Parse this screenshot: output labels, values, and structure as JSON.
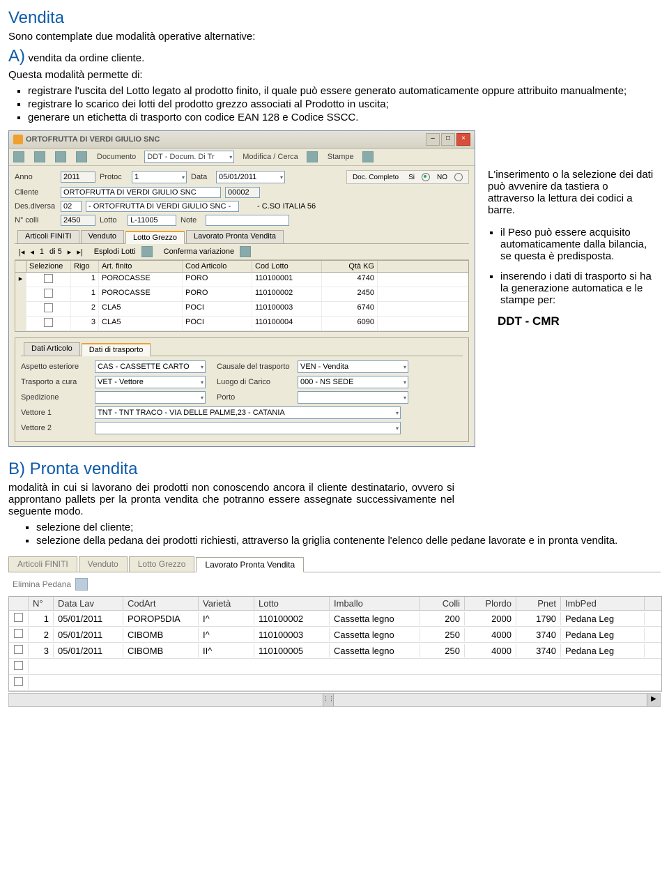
{
  "title": "Vendita",
  "intro": "Sono contemplate due modalità operative alternative:",
  "modeA": {
    "label": "A)",
    "desc": "vendita da ordine cliente.",
    "lead": "Questa modalità permette di:",
    "bullets": [
      "registrare l'uscita del Lotto legato al prodotto finito, il quale può essere generato automaticamente oppure attribuito manualmente;",
      "registrare lo scarico dei lotti del prodotto grezzo associati al Prodotto in uscita;",
      "generare un etichetta di trasporto con codice EAN 128 e Codice SSCC."
    ]
  },
  "sidebar": {
    "p1": "L'inserimento o la selezione dei dati può avvenire da tastiera o attraverso la lettura dei codici a barre.",
    "b1": "il Peso può essere acquisito automaticamente dalla bilancia, se questa è predisposta.",
    "b2": "inserendo i dati di trasporto si ha la generazione automatica e le stampe per:",
    "dd": "DDT  -   CMR"
  },
  "modeB": {
    "label": "B) Pronta vendita",
    "body": "modalità in cui si lavorano dei prodotti non conoscendo ancora il cliente destinatario, ovvero si approntano pallets per la pronta vendita che potranno essere assegnate successivamente nel seguente modo.",
    "bullets": [
      "selezione del cliente;",
      "selezione della pedana dei prodotti richiesti, attraverso la griglia contenente l'elenco delle pedane lavorate e in pronta vendita."
    ]
  },
  "win1": {
    "title": "ORTOFRUTTA DI VERDI GIULIO SNC",
    "toolbar": {
      "docs": "Documento",
      "doc_sel": "DDT - Docum. Di Tr",
      "modifica": "Modifica / Cerca",
      "stampe": "Stampe"
    },
    "form": {
      "anno_lbl": "Anno",
      "anno_val": "2011",
      "protoc_lbl": "Protoc",
      "protoc_val": "1",
      "data_lbl": "Data",
      "data_val": "05/01/2011",
      "cliente_lbl": "Cliente",
      "cliente_val": "ORTOFRUTTA DI VERDI GIULIO SNC",
      "cliente_code": "00002",
      "des_lbl": "Des.diversa",
      "des_code": "02",
      "des_val": "- ORTOFRUTTA DI VERDI GIULIO SNC -",
      "des_addr": "- C.SO ITALIA 56",
      "colli_lbl": "N° colli",
      "colli_val": "2450",
      "lotto_lbl": "Lotto",
      "lotto_val": "L-11005",
      "note_lbl": "Note",
      "doc_completo_lbl": "Doc. Completo",
      "si": "Si",
      "no": "NO"
    },
    "tabs1": [
      "Articoli FINITI",
      "Venduto",
      "Lotto Grezzo",
      "Lavorato Pronta Vendita"
    ],
    "tabs1_active": 2,
    "tb2": {
      "nav": "di 5",
      "esplodi": "Esplodi Lotti",
      "conferma": "Conferma variazione"
    },
    "grid1": {
      "cols": [
        "Selezione",
        "Rigo",
        "Art. finito",
        "Cod Articolo",
        "Cod Lotto",
        "Qtà KG"
      ],
      "widths": [
        64,
        40,
        120,
        100,
        100,
        80
      ],
      "rows": [
        {
          "rigo": "1",
          "art": "POROCASSE",
          "codart": "PORO",
          "codlot": "110100001",
          "qta": "4740"
        },
        {
          "rigo": "1",
          "art": "POROCASSE",
          "codart": "PORO",
          "codlot": "110100002",
          "qta": "2450"
        },
        {
          "rigo": "2",
          "art": "CLA5",
          "codart": "POCI",
          "codlot": "110100003",
          "qta": "6740"
        },
        {
          "rigo": "3",
          "art": "CLA5",
          "codart": "POCI",
          "codlot": "110100004",
          "qta": "6090"
        }
      ]
    },
    "tabs2": [
      "Dati Articolo",
      "Dati di trasporto"
    ],
    "tabs2_active": 1,
    "transport": {
      "aspetto_lbl": "Aspetto esteriore",
      "aspetto_val": "CAS - CASSETTE CARTO",
      "causale_lbl": "Causale del trasporto",
      "causale_val": "VEN - Vendita",
      "trasporto_lbl": "Trasporto a cura",
      "trasporto_val": "VET - Vettore",
      "luogo_lbl": "Luogo di Carico",
      "luogo_val": "000 - NS SEDE",
      "sped_lbl": "Spedizione",
      "porto_lbl": "Porto",
      "vet1_lbl": "Vettore 1",
      "vet1_val": "TNT - TNT TRACO - VIA DELLE PALME,23 - CATANIA",
      "vet2_lbl": "Vettore 2"
    }
  },
  "ss2": {
    "tabs": [
      "Articoli FINITI",
      "Venduto",
      "Lotto Grezzo",
      "Lavorato Pronta Vendita"
    ],
    "active": 3,
    "elimina": "Elimina Pedana",
    "cols": [
      "",
      "N°",
      "Data Lav",
      "CodArt",
      "Varietà",
      "Lotto",
      "Imballo",
      "Colli",
      "Plordo",
      "Pnet",
      "ImbPed"
    ],
    "widths": [
      28,
      36,
      100,
      108,
      80,
      108,
      130,
      64,
      74,
      64,
      120
    ],
    "rows": [
      {
        "n": "1",
        "data": "05/01/2011",
        "cod": "POROP5DIA",
        "var": "I^",
        "lot": "110100002",
        "imb": "Cassetta legno",
        "colli": "200",
        "pl": "2000",
        "pn": "1790",
        "ip": "Pedana Leg"
      },
      {
        "n": "2",
        "data": "05/01/2011",
        "cod": "CIBOMB",
        "var": "I^",
        "lot": "110100003",
        "imb": "Cassetta legno",
        "colli": "250",
        "pl": "4000",
        "pn": "3740",
        "ip": "Pedana Leg"
      },
      {
        "n": "3",
        "data": "05/01/2011",
        "cod": "CIBOMB",
        "var": "II^",
        "lot": "110100005",
        "imb": "Cassetta legno",
        "colli": "250",
        "pl": "4000",
        "pn": "3740",
        "ip": "Pedana Leg"
      }
    ]
  },
  "colors": {
    "heading": "#0e5ba8",
    "win_bg": "#ece9d8",
    "border": "#aca899",
    "input_border": "#7f9db9"
  }
}
